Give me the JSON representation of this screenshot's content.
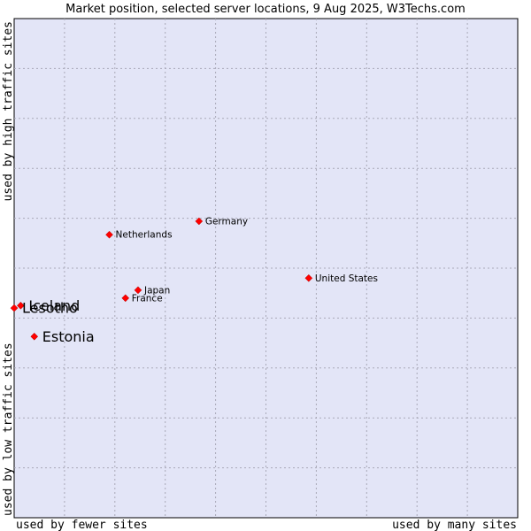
{
  "chart_data": {
    "type": "scatter",
    "title": "Market position, selected server locations, 9 Aug 2025, W3Techs.com",
    "x_label_low": "used by fewer sites",
    "x_label_high": "used by many sites",
    "y_label_low": "used by low traffic sites",
    "y_label_high": "used by high traffic sites",
    "xlim": [
      0,
      100
    ],
    "ylim": [
      0,
      100
    ],
    "grid": true,
    "marker_color": "#ff0000",
    "plot_background": "#e3e5f7",
    "points": [
      {
        "name": "United States",
        "x": 58.5,
        "y": 48.0,
        "emphasis": false
      },
      {
        "name": "Germany",
        "x": 36.7,
        "y": 59.4,
        "emphasis": false
      },
      {
        "name": "Netherlands",
        "x": 18.9,
        "y": 56.7,
        "emphasis": false
      },
      {
        "name": "Japan",
        "x": 24.6,
        "y": 45.6,
        "emphasis": false
      },
      {
        "name": "France",
        "x": 22.1,
        "y": 44.0,
        "emphasis": false
      },
      {
        "name": "Iceland",
        "x": 1.3,
        "y": 42.5,
        "emphasis": true
      },
      {
        "name": "Lesotho",
        "x": 0.0,
        "y": 42.0,
        "emphasis": true
      },
      {
        "name": "Estonia",
        "x": 4.0,
        "y": 36.3,
        "emphasis": true
      }
    ]
  }
}
